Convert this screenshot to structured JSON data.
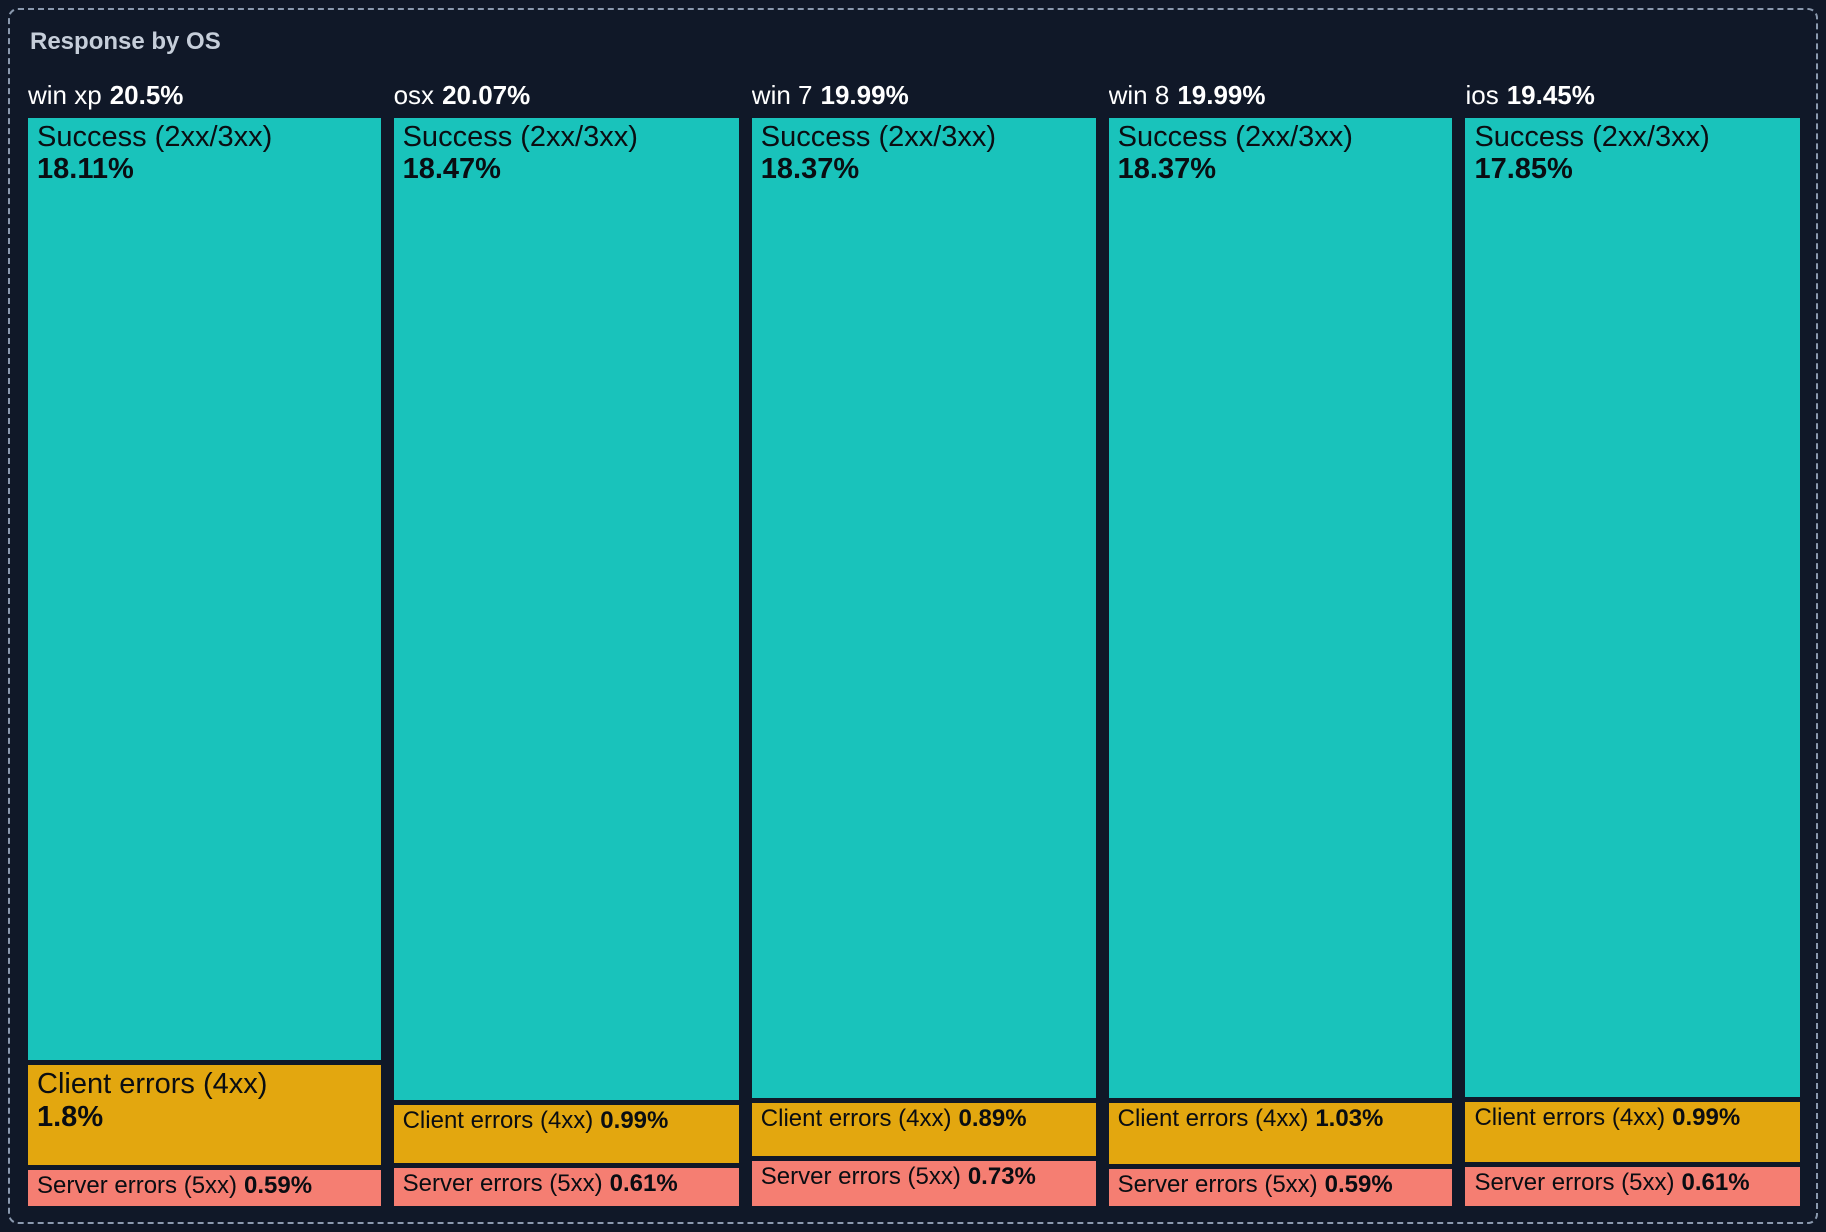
{
  "panel": {
    "title": "Response by OS"
  },
  "theme": {
    "background": "#101828",
    "border_dash": "#8A99AE",
    "title_text": "#C6CEDA",
    "header_text": "#FFFFFF",
    "block_text": "#0A0D12"
  },
  "chart_data": {
    "type": "treemap",
    "title": "Response by OS",
    "orientation": "columns",
    "unit": "%",
    "legend": "none",
    "grid": "off",
    "colors": {
      "success": "#19C3BB",
      "client_errors": "#E3A70F",
      "server_errors": "#F57E72"
    },
    "columns": [
      {
        "name": "win xp",
        "total": 20.5,
        "total_text": "20.5%",
        "segments": [
          {
            "key": "success",
            "label": "Success (2xx/3xx)",
            "value": 18.11,
            "text": "18.11%"
          },
          {
            "key": "client_errors",
            "label": "Client errors (4xx)",
            "value": 1.8,
            "text": "1.8%"
          },
          {
            "key": "server_errors",
            "label": "Server errors (5xx)",
            "value": 0.59,
            "text": "0.59%"
          }
        ]
      },
      {
        "name": "osx",
        "total": 20.07,
        "total_text": "20.07%",
        "segments": [
          {
            "key": "success",
            "label": "Success (2xx/3xx)",
            "value": 18.47,
            "text": "18.47%"
          },
          {
            "key": "client_errors",
            "label": "Client errors (4xx)",
            "value": 0.99,
            "text": "0.99%"
          },
          {
            "key": "server_errors",
            "label": "Server errors (5xx)",
            "value": 0.61,
            "text": "0.61%"
          }
        ]
      },
      {
        "name": "win 7",
        "total": 19.99,
        "total_text": "19.99%",
        "segments": [
          {
            "key": "success",
            "label": "Success (2xx/3xx)",
            "value": 18.37,
            "text": "18.37%"
          },
          {
            "key": "client_errors",
            "label": "Client errors (4xx)",
            "value": 0.89,
            "text": "0.89%"
          },
          {
            "key": "server_errors",
            "label": "Server errors (5xx)",
            "value": 0.73,
            "text": "0.73%"
          }
        ]
      },
      {
        "name": "win 8",
        "total": 19.99,
        "total_text": "19.99%",
        "segments": [
          {
            "key": "success",
            "label": "Success (2xx/3xx)",
            "value": 18.37,
            "text": "18.37%"
          },
          {
            "key": "client_errors",
            "label": "Client errors (4xx)",
            "value": 1.03,
            "text": "1.03%"
          },
          {
            "key": "server_errors",
            "label": "Server errors (5xx)",
            "value": 0.59,
            "text": "0.59%"
          }
        ]
      },
      {
        "name": "ios",
        "total": 19.45,
        "total_text": "19.45%",
        "segments": [
          {
            "key": "success",
            "label": "Success (2xx/3xx)",
            "value": 17.85,
            "text": "17.85%"
          },
          {
            "key": "client_errors",
            "label": "Client errors (4xx)",
            "value": 0.99,
            "text": "0.99%"
          },
          {
            "key": "server_errors",
            "label": "Server errors (5xx)",
            "value": 0.61,
            "text": "0.61%"
          }
        ]
      }
    ]
  }
}
